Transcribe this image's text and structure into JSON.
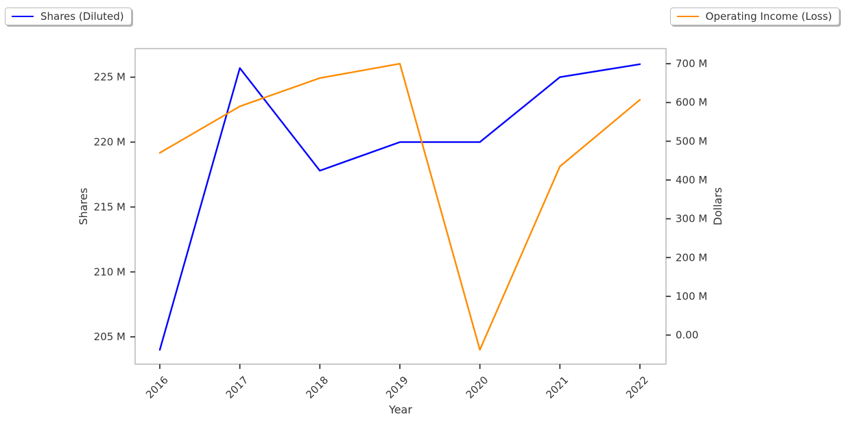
{
  "figure": {
    "background": "#ffffff",
    "plot_border_color": "#c9c9c9"
  },
  "legend": {
    "left": {
      "label": "Shares (Diluted)",
      "color": "#0000FF"
    },
    "right": {
      "label": "Operating Income (Loss)",
      "color": "#FF8C00"
    }
  },
  "chart_data": {
    "type": "line",
    "title": "",
    "grid": false,
    "legend_position": [
      "upper left",
      "upper right"
    ],
    "x_axis": {
      "label": "Year",
      "categories": [
        "2016",
        "2017",
        "2018",
        "2019",
        "2020",
        "2021",
        "2022"
      ],
      "tick_rotation_degrees": 45
    },
    "left_axis": {
      "label": "Shares",
      "unit": "millions of shares",
      "tick_labels": [
        "205 M",
        "210 M",
        "215 M",
        "220 M",
        "225 M"
      ],
      "tick_values": [
        205,
        210,
        215,
        220,
        225
      ],
      "min": 202.9,
      "max": 227.2
    },
    "right_axis": {
      "label": "Dollars",
      "unit": "millions of dollars",
      "tick_labels": [
        "0.00",
        "100 M",
        "200 M",
        "300 M",
        "400 M",
        "500 M",
        "600 M",
        "700 M"
      ],
      "tick_values": [
        0,
        100,
        200,
        300,
        400,
        500,
        600,
        700
      ],
      "min": -75,
      "max": 739
    },
    "series": [
      {
        "name": "Shares (Diluted)",
        "axis": "left",
        "color": "#0000FF",
        "values_millions": [
          204,
          225.7,
          217.8,
          220,
          220,
          225,
          226
        ]
      },
      {
        "name": "Operating Income (Loss)",
        "axis": "right",
        "color": "#FF8C00",
        "values_millions": [
          470,
          590,
          663,
          700,
          -38,
          435,
          607
        ]
      }
    ]
  }
}
